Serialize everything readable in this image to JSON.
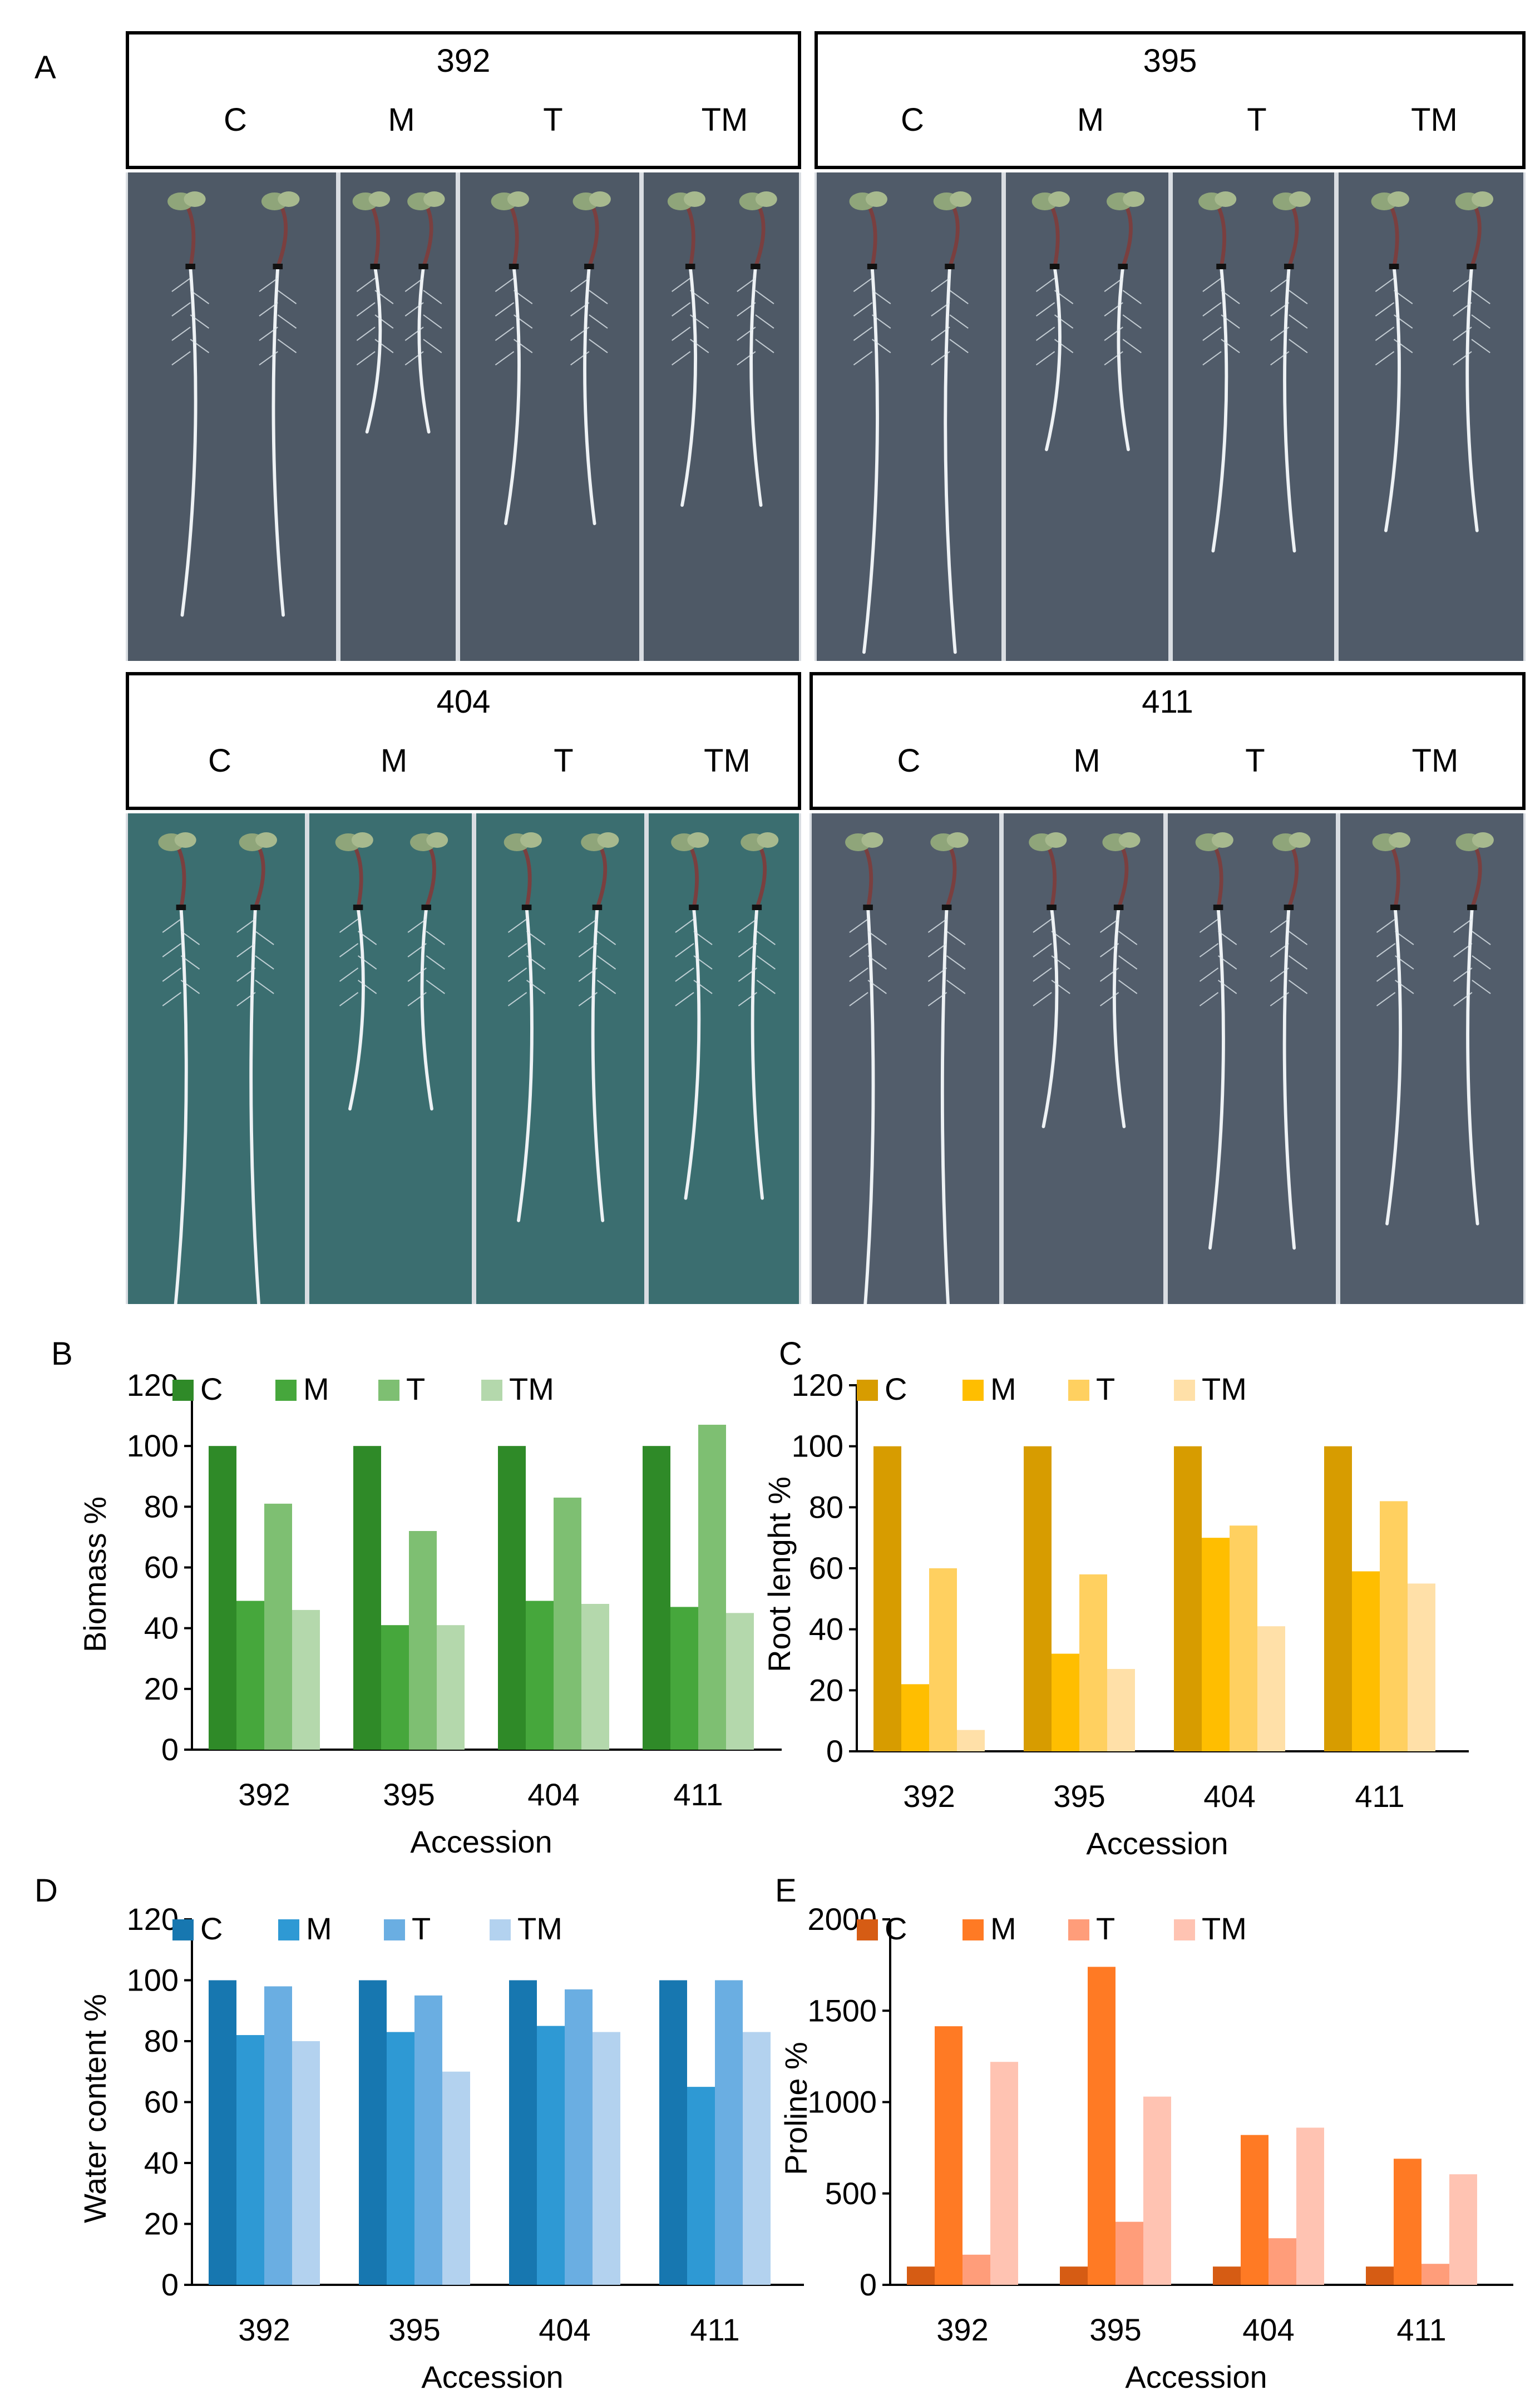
{
  "panels": {
    "A": "A",
    "B": "B",
    "C": "C",
    "D": "D",
    "E": "E"
  },
  "treatments": [
    "C",
    "M",
    "T",
    "TM"
  ],
  "photo_groups": [
    {
      "accession": "392",
      "background": "#4e5966"
    },
    {
      "accession": "395",
      "background": "#505b69"
    },
    {
      "accession": "404",
      "background": "#3b6e70"
    },
    {
      "accession": "411",
      "background": "#525d6b"
    }
  ],
  "chart_data": [
    {
      "id": "B",
      "type": "bar",
      "categories": [
        "392",
        "395",
        "404",
        "411"
      ],
      "series": [
        {
          "name": "C",
          "values": [
            100,
            100,
            100,
            100
          ],
          "color": "#2f8a28"
        },
        {
          "name": "M",
          "values": [
            49,
            41,
            49,
            47
          ],
          "color": "#46a73c"
        },
        {
          "name": "T",
          "values": [
            81,
            72,
            83,
            107
          ],
          "color": "#7ebf72"
        },
        {
          "name": "TM",
          "values": [
            46,
            41,
            48,
            45
          ],
          "color": "#b4d8ac"
        }
      ],
      "title": "",
      "xlabel": "Accession",
      "ylabel": "Biomass %",
      "ylim": [
        0,
        120
      ],
      "yticks": [
        "0",
        "20",
        "40",
        "60",
        "80",
        "100",
        "120"
      ],
      "legend_position": "top"
    },
    {
      "id": "C",
      "type": "bar",
      "categories": [
        "392",
        "395",
        "404",
        "411"
      ],
      "series": [
        {
          "name": "C",
          "values": [
            100,
            100,
            100,
            100
          ],
          "color": "#d79c00"
        },
        {
          "name": "M",
          "values": [
            22,
            32,
            70,
            59
          ],
          "color": "#ffbe00"
        },
        {
          "name": "T",
          "values": [
            60,
            58,
            74,
            82
          ],
          "color": "#ffd060"
        },
        {
          "name": "TM",
          "values": [
            7,
            27,
            41,
            55
          ],
          "color": "#ffe0a8"
        }
      ],
      "title": "",
      "xlabel": "Accession",
      "ylabel": "Root lenght %",
      "ylim": [
        0,
        120
      ],
      "yticks": [
        "0",
        "20",
        "40",
        "60",
        "80",
        "100",
        "120"
      ],
      "legend_position": "top"
    },
    {
      "id": "D",
      "type": "bar",
      "categories": [
        "392",
        "395",
        "404",
        "411"
      ],
      "series": [
        {
          "name": "C",
          "values": [
            100,
            100,
            100,
            100
          ],
          "color": "#1777b0"
        },
        {
          "name": "M",
          "values": [
            82,
            83,
            85,
            65
          ],
          "color": "#2e99d4"
        },
        {
          "name": "T",
          "values": [
            98,
            95,
            97,
            100
          ],
          "color": "#6aaee2"
        },
        {
          "name": "TM",
          "values": [
            80,
            70,
            83,
            83
          ],
          "color": "#b3d2ef"
        }
      ],
      "title": "",
      "xlabel": "Accession",
      "ylabel": "Water content %",
      "ylim": [
        0,
        120
      ],
      "yticks": [
        "0",
        "20",
        "40",
        "60",
        "80",
        "100",
        "120"
      ],
      "legend_position": "top"
    },
    {
      "id": "E",
      "type": "bar",
      "categories": [
        "392",
        "395",
        "404",
        "411"
      ],
      "series": [
        {
          "name": "C",
          "values": [
            100,
            100,
            100,
            100
          ],
          "color": "#d65c14"
        },
        {
          "name": "M",
          "values": [
            1415,
            1740,
            820,
            690
          ],
          "color": "#ff7a24"
        },
        {
          "name": "T",
          "values": [
            165,
            345,
            255,
            115
          ],
          "color": "#ff9d7a"
        },
        {
          "name": "TM",
          "values": [
            1220,
            1030,
            860,
            605
          ],
          "color": "#ffc3b2"
        }
      ],
      "title": "",
      "xlabel": "Accession",
      "ylabel": "Proline %",
      "ylim": [
        0,
        2000
      ],
      "yticks": [
        "0",
        "500",
        "1000",
        "1500",
        "2000"
      ],
      "legend_position": "top"
    }
  ]
}
